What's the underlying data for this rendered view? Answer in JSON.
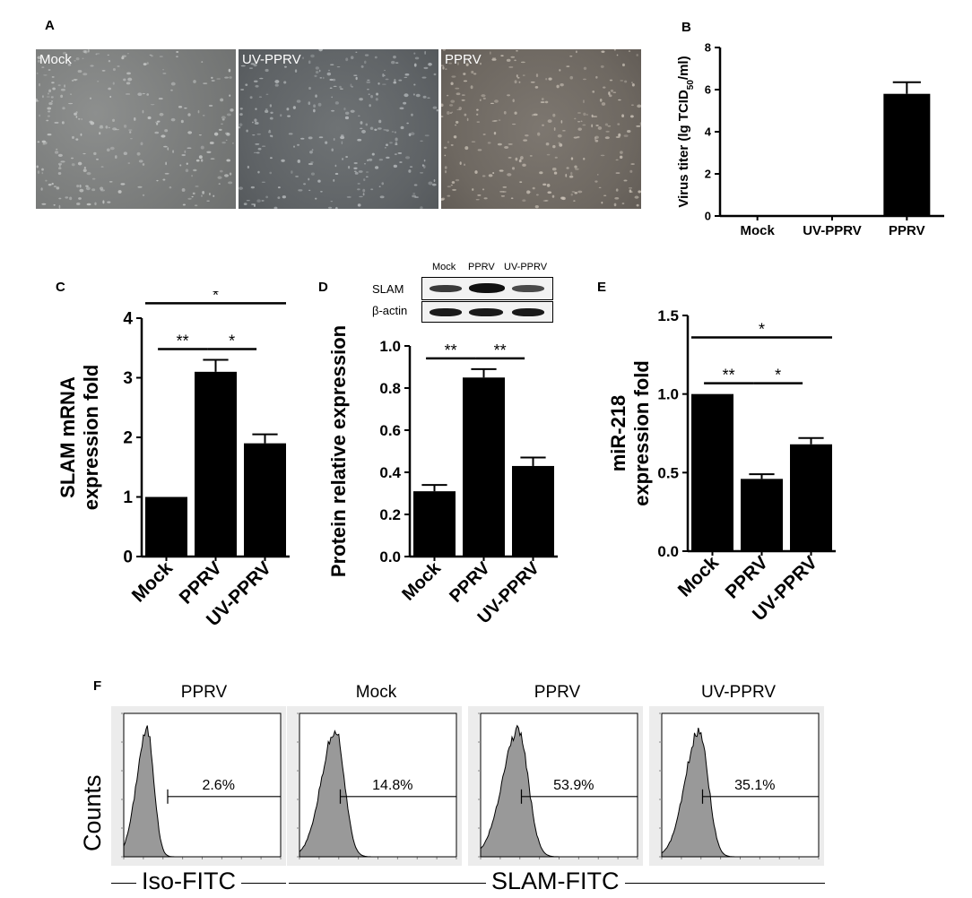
{
  "panels": {
    "A": "A",
    "B": "B",
    "C": "C",
    "D": "D",
    "E": "E",
    "F": "F"
  },
  "micrographs": [
    {
      "label": "Mock"
    },
    {
      "label": "UV-PPRV"
    },
    {
      "label": "PPRV"
    }
  ],
  "western_blot": {
    "lane_labels": [
      "Mock",
      "PPRV",
      "UV-PPRV"
    ],
    "rows": [
      "SLAM",
      "β-actin"
    ]
  },
  "flow": {
    "titles": [
      "PPRV",
      "Mock",
      "PPRV",
      "UV-PPRV"
    ],
    "percents": [
      "2.6%",
      "14.8%",
      "53.9%",
      "35.1%"
    ],
    "y_label": "Counts",
    "x_label_iso": "Iso-FITC",
    "x_label_slam": "SLAM-FITC"
  },
  "chart_data": [
    {
      "id": "B",
      "type": "bar",
      "categories": [
        "Mock",
        "UV-PPRV",
        "PPRV"
      ],
      "values": [
        0,
        0,
        5.8
      ],
      "errors": [
        0,
        0,
        0.55
      ],
      "ylabel_parts": [
        "Virus titer (lg TCID",
        "50",
        "/ml)"
      ],
      "ylim": [
        0,
        8
      ],
      "yticks": [
        "0",
        "2",
        "4",
        "6",
        "8"
      ],
      "significance": []
    },
    {
      "id": "C",
      "type": "bar",
      "categories": [
        "Mock",
        "PPRV",
        "UV-PPRV"
      ],
      "values": [
        1.0,
        3.1,
        1.9
      ],
      "errors": [
        0,
        0.2,
        0.15
      ],
      "ylabel_lines": [
        "SLAM mRNA",
        "expression fold"
      ],
      "ylim": [
        0,
        4
      ],
      "yticks": [
        "0",
        "1",
        "2",
        "3",
        "4"
      ],
      "significance": [
        {
          "from": 0,
          "to": 1,
          "label": "**"
        },
        {
          "from": 1,
          "to": 2,
          "label": "*"
        },
        {
          "from": 0,
          "to": 2,
          "label": "*"
        }
      ]
    },
    {
      "id": "D",
      "type": "bar",
      "categories": [
        "Mock",
        "PPRV",
        "UV-PPRV"
      ],
      "values": [
        0.31,
        0.85,
        0.43
      ],
      "errors": [
        0.03,
        0.04,
        0.04
      ],
      "ylabel_lines": [
        "Protein relative expression"
      ],
      "ylim": [
        0,
        1.0
      ],
      "yticks": [
        "0.0",
        "0.2",
        "0.4",
        "0.6",
        "0.8",
        "1.0"
      ],
      "significance": [
        {
          "from": 0,
          "to": 1,
          "label": "**"
        },
        {
          "from": 1,
          "to": 2,
          "label": "**"
        },
        {
          "from": 0,
          "to": 2,
          "label": "*"
        }
      ]
    },
    {
      "id": "E",
      "type": "bar",
      "categories": [
        "Mock",
        "PPRV",
        "UV-PPRV"
      ],
      "values": [
        1.0,
        0.46,
        0.68
      ],
      "errors": [
        0,
        0.03,
        0.04
      ],
      "ylabel_lines": [
        "miR-218",
        "expression fold"
      ],
      "ylim": [
        0,
        1.5
      ],
      "yticks": [
        "0.0",
        "0.5",
        "1.0",
        "1.5"
      ],
      "significance": [
        {
          "from": 0,
          "to": 1,
          "label": "**"
        },
        {
          "from": 1,
          "to": 2,
          "label": "*"
        },
        {
          "from": 0,
          "to": 2,
          "label": "*"
        }
      ]
    }
  ]
}
